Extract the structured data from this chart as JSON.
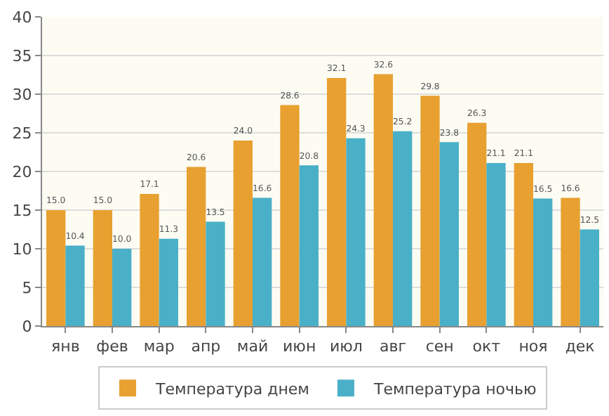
{
  "chart_data": {
    "type": "bar",
    "categories": [
      "янв",
      "фев",
      "мар",
      "апр",
      "май",
      "июн",
      "июл",
      "авг",
      "сен",
      "окт",
      "ноя",
      "дек"
    ],
    "series": [
      {
        "name": "Температура днем",
        "color": "#e8a030",
        "values": [
          15.0,
          15.0,
          17.1,
          20.6,
          24.0,
          28.6,
          32.1,
          32.6,
          29.8,
          26.3,
          21.1,
          16.6
        ],
        "value_labels": [
          "15.0",
          "15.0",
          "17.1",
          "20.6",
          "24.0",
          "28.6",
          "32.1",
          "32.6",
          "29.8",
          "26.3",
          "21.1",
          "16.6"
        ]
      },
      {
        "name": "Температура ночью",
        "color": "#4ab0c8",
        "values": [
          10.4,
          10.0,
          11.3,
          13.5,
          16.6,
          20.8,
          24.3,
          25.2,
          23.8,
          21.1,
          16.5,
          12.5
        ],
        "value_labels": [
          "10.4",
          "10.0",
          "11.3",
          "13.5",
          "16.6",
          "20.8",
          "24.3",
          "25.2",
          "23.8",
          "21.1",
          "16.5",
          "12.5"
        ]
      }
    ],
    "ylim": [
      0,
      40
    ],
    "yticks": [
      0,
      5,
      10,
      15,
      20,
      25,
      30,
      35,
      40
    ],
    "grid": "y",
    "legend": "bottom"
  }
}
